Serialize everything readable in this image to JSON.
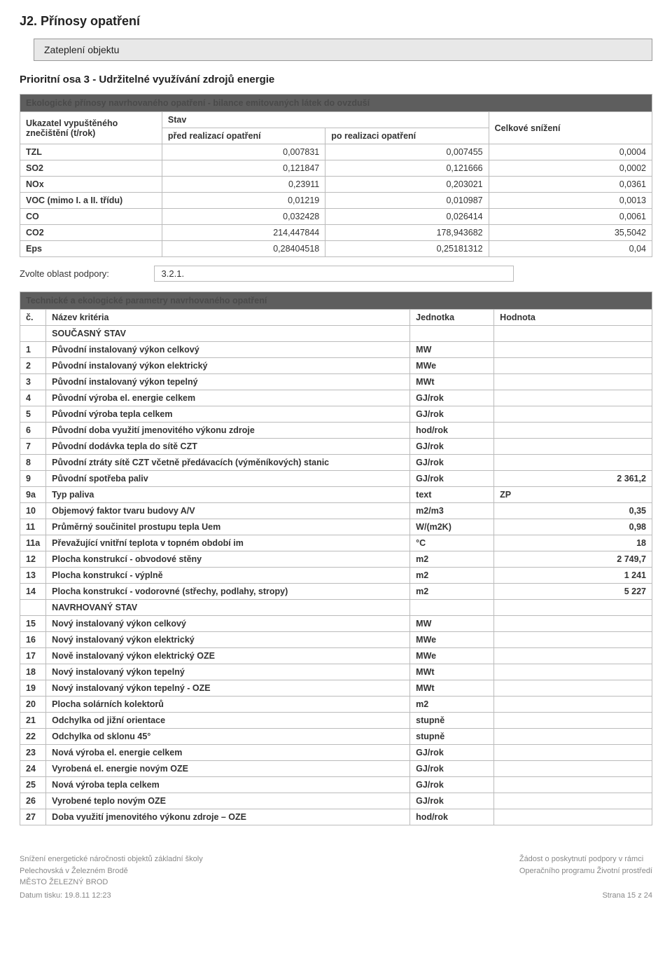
{
  "title": "J2. Přínosy opatření",
  "subtitle": "Zateplení objektu",
  "priority": "Prioritní osa 3 - Udržitelné využívání zdrojů energie",
  "t1": {
    "banner": "Ekologické přínosy navrhovaného opatření - bilance emitovaných látek do ovzduší",
    "hdr_indicator": "Ukazatel vypuštěného znečištění (t/rok)",
    "hdr_stav": "Stav",
    "hdr_reduction": "Celkové snížení",
    "hdr_pre": "před realizací opatření",
    "hdr_post": "po realizaci opatření",
    "rows": [
      {
        "l": "TZL",
        "a": "0,007831",
        "b": "0,007455",
        "c": "0,0004"
      },
      {
        "l": "SO2",
        "a": "0,121847",
        "b": "0,121666",
        "c": "0,0002"
      },
      {
        "l": "NOx",
        "a": "0,23911",
        "b": "0,203021",
        "c": "0,0361"
      },
      {
        "l": "VOC (mimo I. a II. třídu)",
        "a": "0,01219",
        "b": "0,010987",
        "c": "0,0013"
      },
      {
        "l": "CO",
        "a": "0,032428",
        "b": "0,026414",
        "c": "0,0061"
      },
      {
        "l": "CO2",
        "a": "214,447844",
        "b": "178,943682",
        "c": "35,5042"
      },
      {
        "l": "Eps",
        "a": "0,28404518",
        "b": "0,25181312",
        "c": "0,04"
      }
    ]
  },
  "zvol_label": "Zvolte oblast podpory:",
  "zvol_value": "3.2.1.",
  "t2": {
    "banner": "Technické a ekologické parametry navrhovaného opatření",
    "h_num": "č.",
    "h_name": "Název kritéria",
    "h_unit": "Jednotka",
    "h_val": "Hodnota",
    "sec1": "SOUČASNÝ STAV",
    "sec2": "NAVRHOVANÝ STAV",
    "rows1": [
      {
        "n": "1",
        "name": "Původní instalovaný výkon celkový",
        "u": "MW",
        "v": ""
      },
      {
        "n": "2",
        "name": "Původní instalovaný výkon elektrický",
        "u": "MWe",
        "v": ""
      },
      {
        "n": "3",
        "name": "Původní instalovaný výkon tepelný",
        "u": "MWt",
        "v": ""
      },
      {
        "n": "4",
        "name": "Původní výroba el. energie celkem",
        "u": "GJ/rok",
        "v": ""
      },
      {
        "n": "5",
        "name": "Původní výroba tepla celkem",
        "u": "GJ/rok",
        "v": ""
      },
      {
        "n": "6",
        "name": "Původní doba využití jmenovitého výkonu zdroje",
        "u": "hod/rok",
        "v": ""
      },
      {
        "n": "7",
        "name": "Původní dodávka tepla do sítě CZT",
        "u": "GJ/rok",
        "v": ""
      },
      {
        "n": "8",
        "name": "Původní ztráty sítě CZT včetně předávacích (výměníkových) stanic",
        "u": "GJ/rok",
        "v": ""
      },
      {
        "n": "9",
        "name": "Původní spotřeba paliv",
        "u": "GJ/rok",
        "v": "2 361,2"
      },
      {
        "n": "9a",
        "name": "Typ paliva",
        "u": "text",
        "v": "ZP"
      },
      {
        "n": "10",
        "name": "Objemový faktor tvaru budovy A/V",
        "u": "m2/m3",
        "v": "0,35"
      },
      {
        "n": "11",
        "name": "Průměrný součinitel prostupu tepla Uem",
        "u": "W/(m2K)",
        "v": "0,98"
      },
      {
        "n": "11a",
        "name": "Převažující vnitřní teplota v topném období im",
        "u": "°C",
        "v": "18"
      },
      {
        "n": "12",
        "name": "Plocha konstrukcí - obvodové stěny",
        "u": "m2",
        "v": "2 749,7"
      },
      {
        "n": "13",
        "name": "Plocha konstrukcí - výplně",
        "u": "m2",
        "v": "1 241"
      },
      {
        "n": "14",
        "name": "Plocha konstrukcí - vodorovné (střechy, podlahy, stropy)",
        "u": "m2",
        "v": "5 227"
      }
    ],
    "rows2": [
      {
        "n": "15",
        "name": "Nový instalovaný výkon celkový",
        "u": "MW",
        "v": ""
      },
      {
        "n": "16",
        "name": "Nový instalovaný výkon elektrický",
        "u": "MWe",
        "v": ""
      },
      {
        "n": "17",
        "name": "Nově instalovaný výkon elektrický OZE",
        "u": "MWe",
        "v": ""
      },
      {
        "n": "18",
        "name": "Nový instalovaný výkon tepelný",
        "u": "MWt",
        "v": ""
      },
      {
        "n": "19",
        "name": "Nový instalovaný výkon tepelný - OZE",
        "u": "MWt",
        "v": ""
      },
      {
        "n": "20",
        "name": "Plocha solárních kolektorů",
        "u": "m2",
        "v": ""
      },
      {
        "n": "21",
        "name": "Odchylka od jižní orientace",
        "u": "stupně",
        "v": ""
      },
      {
        "n": "22",
        "name": "Odchylka od sklonu 45°",
        "u": "stupně",
        "v": ""
      },
      {
        "n": "23",
        "name": "Nová výroba el. energie celkem",
        "u": "GJ/rok",
        "v": ""
      },
      {
        "n": "24",
        "name": "Vyrobená el. energie novým OZE",
        "u": "GJ/rok",
        "v": ""
      },
      {
        "n": "25",
        "name": "Nová výroba tepla celkem",
        "u": "GJ/rok",
        "v": ""
      },
      {
        "n": "26",
        "name": "Vyrobené teplo novým OZE",
        "u": "GJ/rok",
        "v": ""
      },
      {
        "n": "27",
        "name": "Doba využití jmenovitého výkonu zdroje – OZE",
        "u": "hod/rok",
        "v": ""
      }
    ]
  },
  "footer": {
    "left1": "Snížení energetické náročnosti objektů základní školy",
    "left2": "Pelechovská v Železném Brodě",
    "left3": "MĚSTO ŽELEZNÝ BROD",
    "mid1": "Žádost o poskytnutí podpory v rámci",
    "mid2": "Operačního programu Životní prostředí",
    "date": "Datum tisku: 19.8.11 12:23",
    "page": "Strana 15 z 24"
  }
}
